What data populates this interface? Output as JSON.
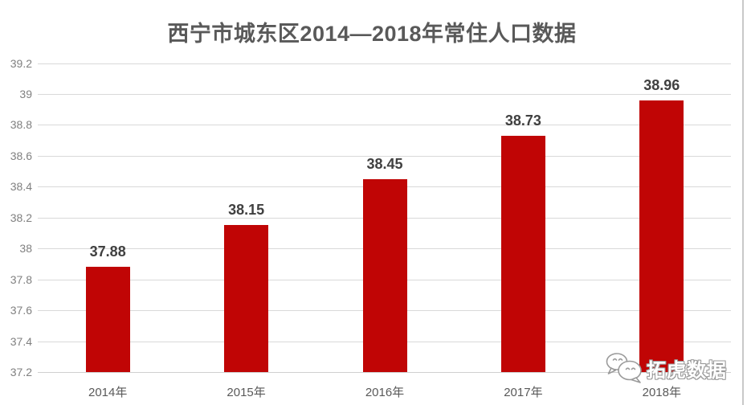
{
  "chart_data": {
    "type": "bar",
    "title": "西宁市城东区2014—2018年常住人口数据",
    "categories": [
      "2014年",
      "2015年",
      "2016年",
      "2017年",
      "2018年"
    ],
    "values": [
      37.88,
      38.15,
      38.45,
      38.73,
      38.96
    ],
    "xlabel": "",
    "ylabel": "",
    "ylim": [
      37.2,
      39.2
    ],
    "y_ticks": [
      {
        "v": 39.2,
        "label": "39.2"
      },
      {
        "v": 39,
        "label": "39"
      },
      {
        "v": 38.8,
        "label": "38.8"
      },
      {
        "v": 38.6,
        "label": "38.6"
      },
      {
        "v": 38.4,
        "label": "38.4"
      },
      {
        "v": 38.2,
        "label": "38.2"
      },
      {
        "v": 38,
        "label": "38"
      },
      {
        "v": 37.8,
        "label": "37.8"
      },
      {
        "v": 37.6,
        "label": "37.6"
      },
      {
        "v": 37.4,
        "label": "37.4"
      },
      {
        "v": 37.2,
        "label": "37.2"
      }
    ],
    "grid": true,
    "legend": "none",
    "colors": {
      "bar": "#c00505",
      "title": "#595959",
      "value_label": "#404040",
      "tick_label": "#808080",
      "category_label": "#595959",
      "gridline": "#d9d9d9",
      "axis_line": "#d0d0d0",
      "page_border": "#c9c9c9"
    }
  },
  "watermark": {
    "text": "拓虎数据",
    "logo": "chat-bubbles-logo"
  }
}
